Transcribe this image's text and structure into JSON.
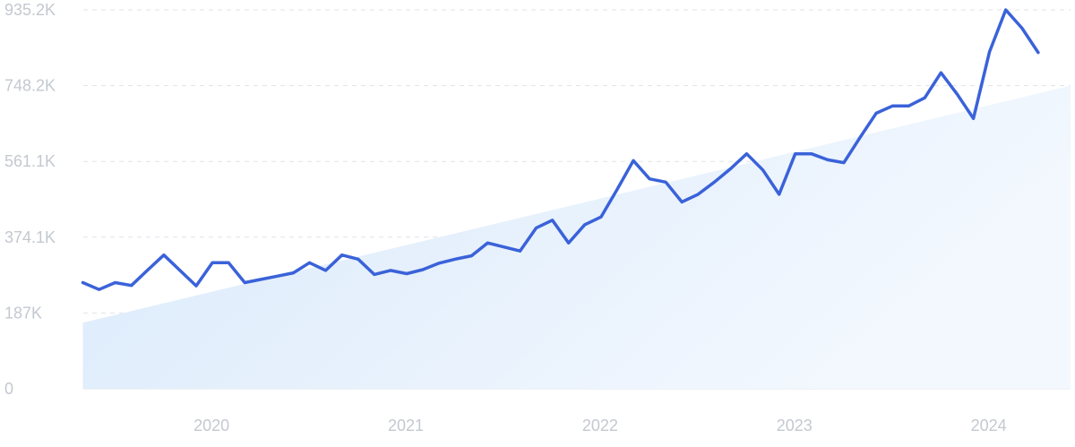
{
  "chart_data": {
    "type": "line",
    "title": "",
    "xlabel": "",
    "ylabel": "",
    "grid": true,
    "legend": "none",
    "ylim": [
      0,
      935200
    ],
    "xlim": [
      "2019-05",
      "2024-06"
    ],
    "y_ticks": [
      {
        "value": 0,
        "label": "0"
      },
      {
        "value": 187000,
        "label": "187K"
      },
      {
        "value": 374100,
        "label": "374.1K"
      },
      {
        "value": 561100,
        "label": "561.1K"
      },
      {
        "value": 748200,
        "label": "748.2K"
      },
      {
        "value": 935200,
        "label": "935.2K"
      }
    ],
    "x_ticks": [
      {
        "value": "2020-01",
        "label": "2020"
      },
      {
        "value": "2021-01",
        "label": "2021"
      },
      {
        "value": "2022-01",
        "label": "2022"
      },
      {
        "value": "2023-01",
        "label": "2023"
      },
      {
        "value": "2024-01",
        "label": "2024"
      }
    ],
    "colors": {
      "line": "#3a62d9",
      "trend_fill": "#dcebfb",
      "grid": "#dfe3e8",
      "tick_text": "#c4c8d0"
    },
    "trend": {
      "start": {
        "x": "2019-05",
        "y": 163000
      },
      "end": {
        "x": "2024-06",
        "y": 748000
      }
    },
    "series": [
      {
        "x": [
          "2019-05",
          "2019-06",
          "2019-07",
          "2019-08",
          "2019-09",
          "2019-10",
          "2019-11",
          "2019-12",
          "2020-01",
          "2020-02",
          "2020-03",
          "2020-04",
          "2020-05",
          "2020-06",
          "2020-07",
          "2020-08",
          "2020-09",
          "2020-10",
          "2020-11",
          "2020-12",
          "2021-01",
          "2021-02",
          "2021-03",
          "2021-04",
          "2021-05",
          "2021-06",
          "2021-07",
          "2021-08",
          "2021-09",
          "2021-10",
          "2021-11",
          "2021-12",
          "2022-01",
          "2022-02",
          "2022-03",
          "2022-04",
          "2022-05",
          "2022-06",
          "2022-07",
          "2022-08",
          "2022-09",
          "2022-10",
          "2022-11",
          "2022-12",
          "2023-01",
          "2023-02",
          "2023-03",
          "2023-04",
          "2023-05",
          "2023-06",
          "2023-07",
          "2023-08",
          "2023-09",
          "2023-10",
          "2023-11",
          "2023-12",
          "2024-01",
          "2024-02",
          "2024-03",
          "2024-04"
        ],
        "values": [
          262000,
          245000,
          262000,
          255000,
          293000,
          330000,
          292000,
          254000,
          311000,
          311000,
          262000,
          270000,
          278000,
          286000,
          311000,
          292000,
          330000,
          320000,
          282000,
          292000,
          284000,
          294000,
          310000,
          320000,
          328000,
          360000,
          350000,
          340000,
          397000,
          416000,
          360000,
          405000,
          424000,
          492000,
          563000,
          518000,
          510000,
          461000,
          480000,
          510000,
          543000,
          580000,
          540000,
          480000,
          580000,
          580000,
          565000,
          558000,
          620000,
          680000,
          698000,
          698000,
          718000,
          780000,
          727000,
          667000,
          832000,
          935200,
          890000,
          830000
        ]
      }
    ]
  }
}
